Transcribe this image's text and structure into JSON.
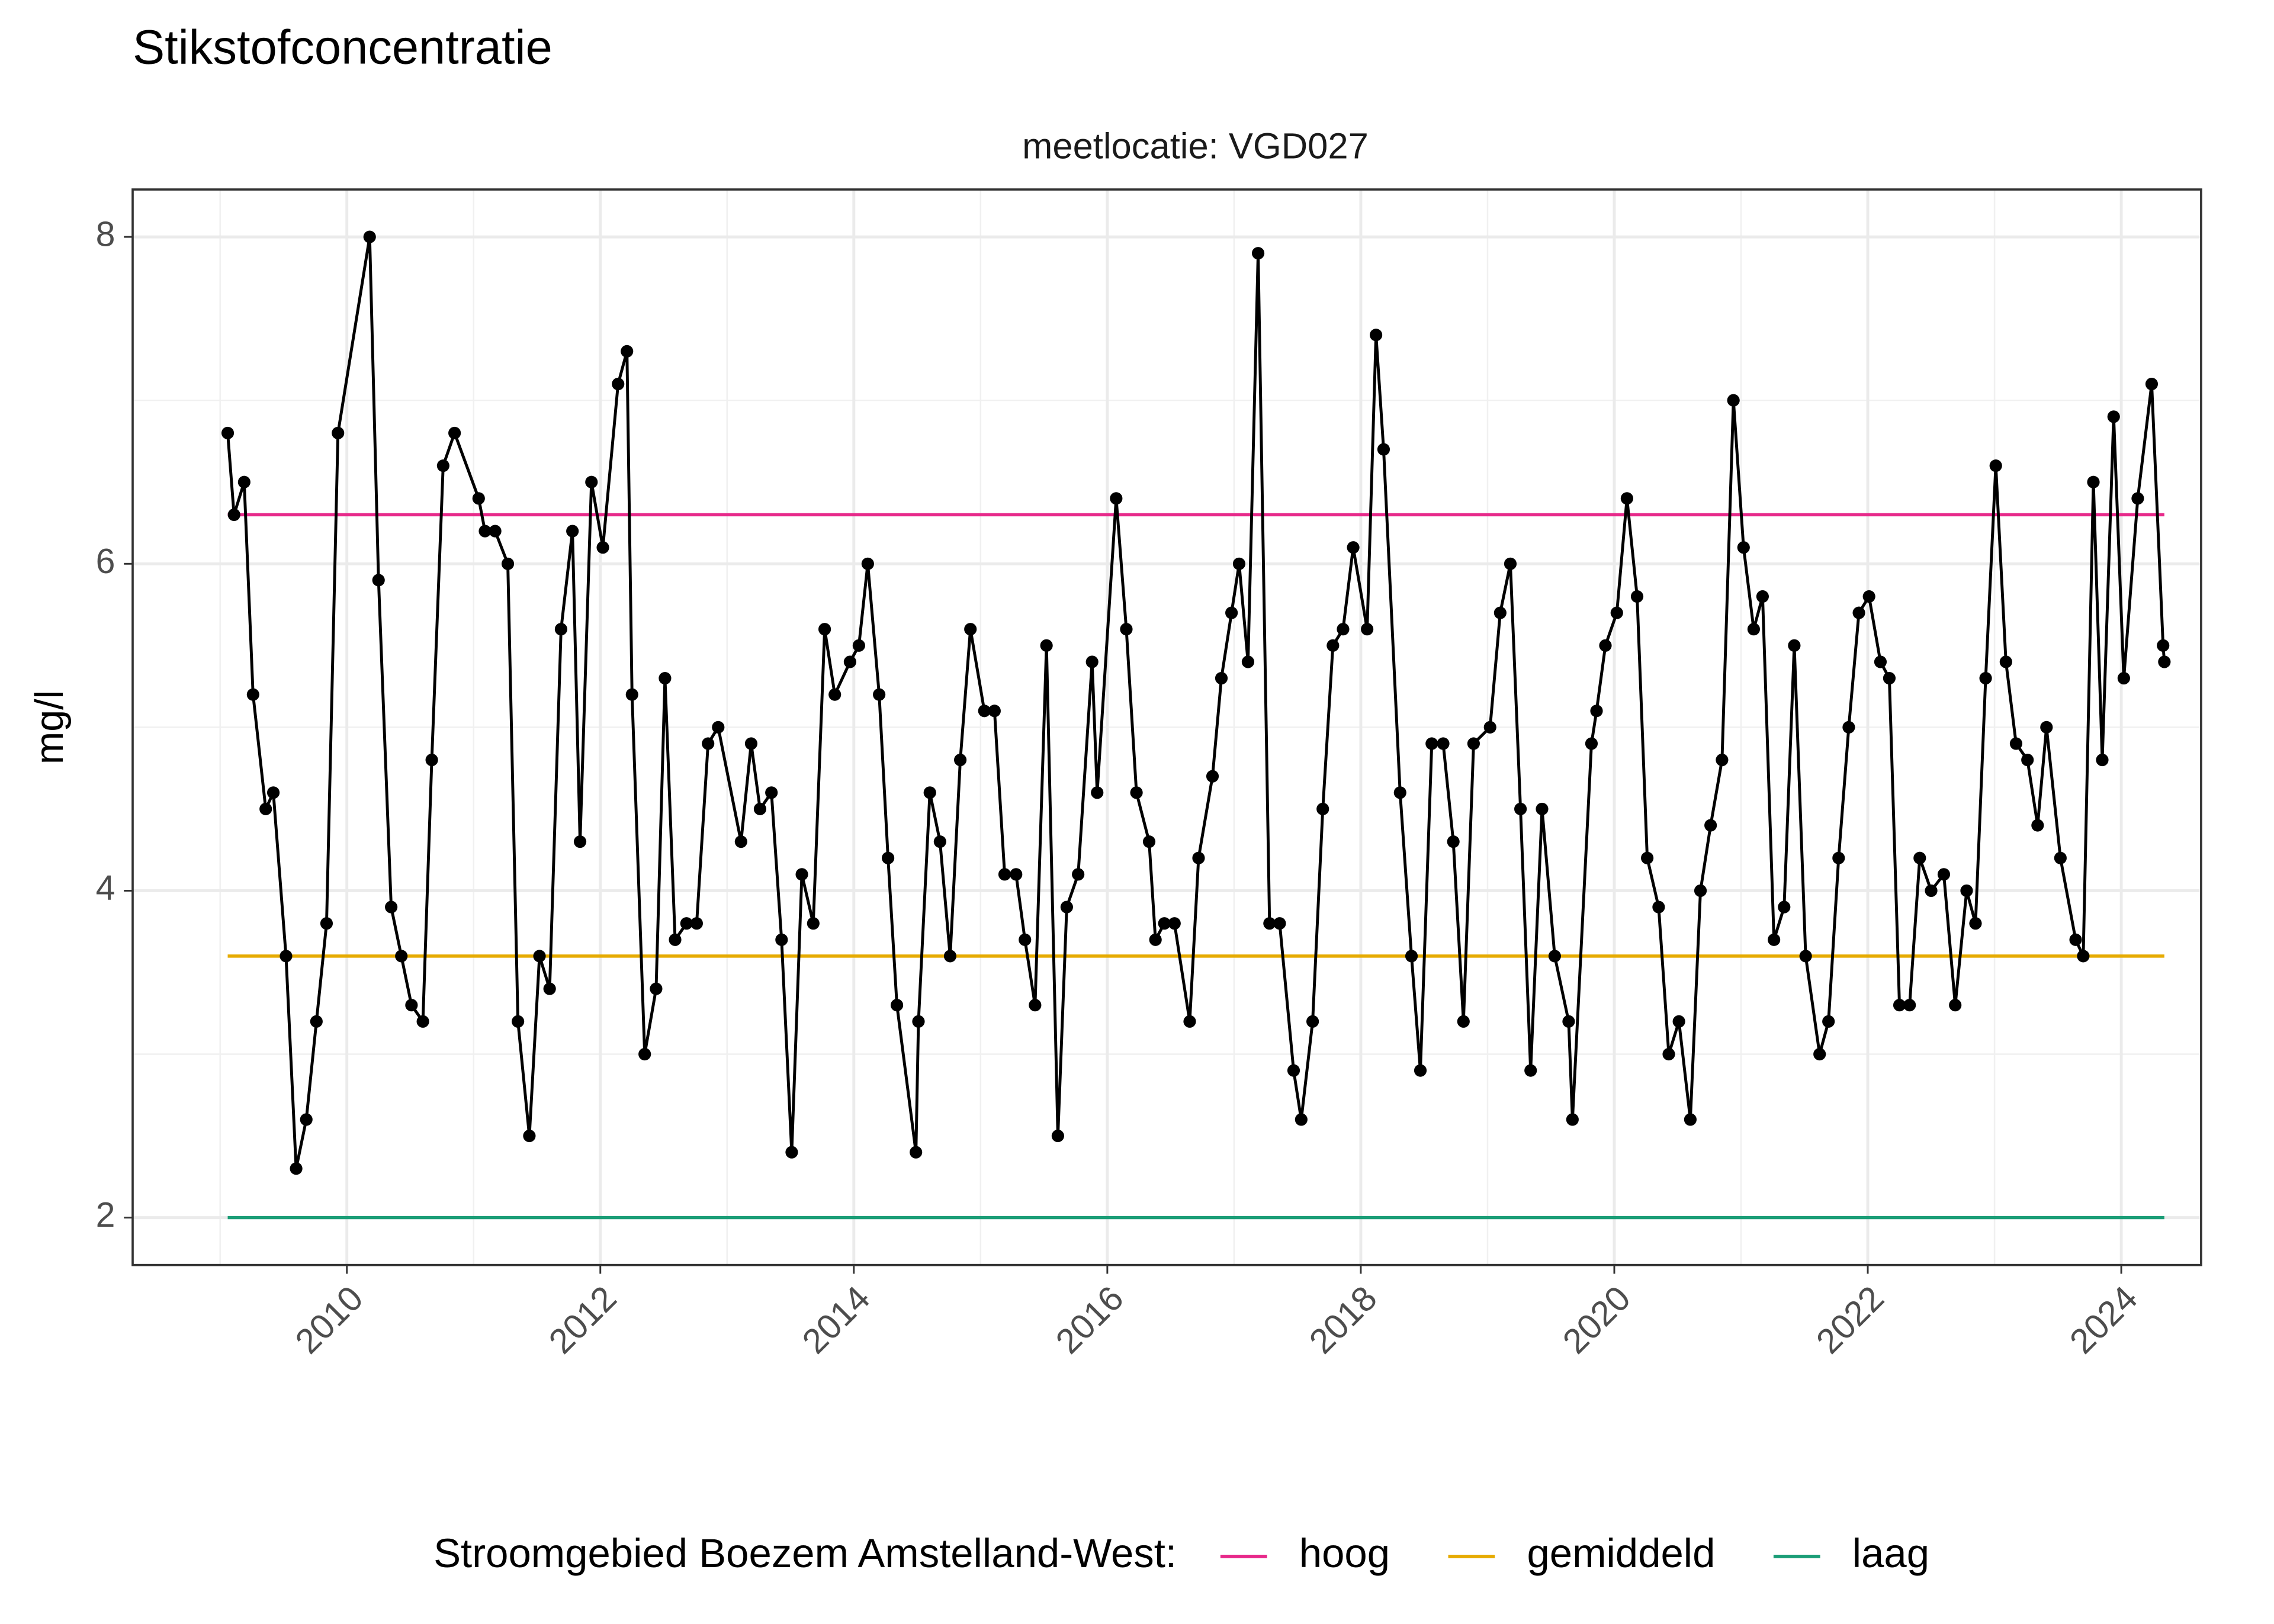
{
  "chart_data": {
    "type": "line",
    "title": "Stikstofconcentratie",
    "subtitle": "meetlocatie: VGD027",
    "y_label": "mg/l",
    "legend_title": "Stroomgebied Boezem Amstelland-West:",
    "legend_position": "bottom",
    "grid": true,
    "xlim": [
      2008.31,
      2024.63
    ],
    "xticks": [
      2010,
      2012,
      2014,
      2016,
      2018,
      2020,
      2022,
      2024
    ],
    "ylim": [
      1.71,
      8.29
    ],
    "yticks": [
      2,
      4,
      6,
      8
    ],
    "series": [
      {
        "color": "#000000",
        "markers": true,
        "x": [
          2009.06,
          2009.11,
          2009.19,
          2009.26,
          2009.36,
          2009.42,
          2009.52,
          2009.6,
          2009.68,
          2009.76,
          2009.84,
          2009.93,
          2010.18,
          2010.25,
          2010.35,
          2010.43,
          2010.51,
          2010.6,
          2010.67,
          2010.76,
          2010.85,
          2011.04,
          2011.09,
          2011.17,
          2011.27,
          2011.35,
          2011.44,
          2011.52,
          2011.6,
          2011.69,
          2011.78,
          2011.84,
          2011.93,
          2012.02,
          2012.14,
          2012.21,
          2012.25,
          2012.35,
          2012.44,
          2012.51,
          2012.59,
          2012.68,
          2012.76,
          2012.85,
          2012.93,
          2013.11,
          2013.19,
          2013.26,
          2013.35,
          2013.43,
          2013.51,
          2013.59,
          2013.68,
          2013.77,
          2013.85,
          2013.97,
          2014.04,
          2014.11,
          2014.2,
          2014.27,
          2014.34,
          2014.49,
          2014.51,
          2014.6,
          2014.68,
          2014.76,
          2014.84,
          2014.92,
          2015.03,
          2015.11,
          2015.19,
          2015.28,
          2015.35,
          2015.43,
          2015.52,
          2015.61,
          2015.68,
          2015.77,
          2015.88,
          2015.92,
          2016.07,
          2016.15,
          2016.23,
          2016.33,
          2016.38,
          2016.45,
          2016.53,
          2016.65,
          2016.72,
          2016.83,
          2016.9,
          2016.98,
          2017.04,
          2017.11,
          2017.19,
          2017.28,
          2017.36,
          2017.47,
          2017.53,
          2017.62,
          2017.7,
          2017.78,
          2017.86,
          2017.94,
          2018.05,
          2018.12,
          2018.18,
          2018.31,
          2018.4,
          2018.47,
          2018.56,
          2018.65,
          2018.73,
          2018.81,
          2018.89,
          2019.02,
          2019.1,
          2019.18,
          2019.26,
          2019.34,
          2019.43,
          2019.53,
          2019.64,
          2019.67,
          2019.82,
          2019.86,
          2019.93,
          2020.02,
          2020.1,
          2020.18,
          2020.26,
          2020.35,
          2020.43,
          2020.51,
          2020.6,
          2020.68,
          2020.76,
          2020.85,
          2020.94,
          2021.02,
          2021.1,
          2021.17,
          2021.26,
          2021.34,
          2021.42,
          2021.51,
          2021.62,
          2021.69,
          2021.77,
          2021.85,
          2021.93,
          2022.01,
          2022.1,
          2022.17,
          2022.25,
          2022.33,
          2022.41,
          2022.5,
          2022.6,
          2022.69,
          2022.78,
          2022.85,
          2022.93,
          2023.01,
          2023.09,
          2023.17,
          2023.26,
          2023.34,
          2023.41,
          2023.52,
          2023.64,
          2023.7,
          2023.78,
          2023.85,
          2023.94,
          2024.02,
          2024.13,
          2024.24,
          2024.33,
          2024.34
        ],
        "values": [
          6.8,
          6.3,
          6.5,
          5.2,
          4.5,
          4.6,
          3.6,
          2.3,
          2.6,
          3.2,
          3.8,
          6.8,
          8.0,
          5.9,
          3.9,
          3.6,
          3.3,
          3.2,
          4.8,
          6.6,
          6.8,
          6.4,
          6.2,
          6.2,
          6.0,
          3.2,
          2.5,
          3.6,
          3.4,
          5.6,
          6.2,
          4.3,
          6.5,
          6.1,
          7.1,
          7.3,
          5.2,
          3.0,
          3.4,
          5.3,
          3.7,
          3.8,
          3.8,
          4.9,
          5.0,
          4.3,
          4.9,
          4.5,
          4.6,
          3.7,
          2.4,
          4.1,
          3.8,
          5.6,
          5.2,
          5.4,
          5.5,
          6.0,
          5.2,
          4.2,
          3.3,
          2.4,
          3.2,
          4.6,
          4.3,
          3.6,
          4.8,
          5.6,
          5.1,
          5.1,
          4.1,
          4.1,
          3.7,
          3.3,
          5.5,
          2.5,
          3.9,
          4.1,
          5.4,
          4.6,
          6.4,
          5.6,
          4.6,
          4.3,
          3.7,
          3.8,
          3.8,
          3.2,
          4.2,
          4.7,
          5.3,
          5.7,
          6.0,
          5.4,
          7.9,
          3.8,
          3.8,
          2.9,
          2.6,
          3.2,
          4.5,
          5.5,
          5.6,
          6.1,
          5.6,
          7.4,
          6.7,
          4.6,
          3.6,
          2.9,
          4.9,
          4.9,
          4.3,
          3.2,
          4.9,
          5.0,
          5.7,
          6.0,
          4.5,
          2.9,
          4.5,
          3.6,
          3.2,
          2.6,
          4.9,
          5.1,
          5.5,
          5.7,
          6.4,
          5.8,
          4.2,
          3.9,
          3.0,
          3.2,
          2.6,
          4.0,
          4.4,
          4.8,
          7.0,
          6.1,
          5.6,
          5.8,
          3.7,
          3.9,
          5.5,
          3.6,
          3.0,
          3.2,
          4.2,
          5.0,
          5.7,
          5.8,
          5.4,
          5.3,
          3.3,
          3.3,
          4.2,
          4.0,
          4.1,
          3.3,
          4.0,
          3.8,
          5.3,
          6.6,
          5.4,
          4.9,
          4.8,
          4.4,
          5.0,
          4.2,
          3.7,
          3.6,
          6.5,
          4.8,
          6.9,
          5.3,
          6.4,
          7.1,
          5.5,
          5.4
        ]
      },
      {
        "name": "hoog",
        "color": "#e7298a",
        "x": [
          2009.06,
          2024.34
        ],
        "values": [
          6.3,
          6.3
        ]
      },
      {
        "name": "gemiddeld",
        "color": "#e6ab02",
        "x": [
          2009.06,
          2024.34
        ],
        "values": [
          3.6,
          3.6
        ]
      },
      {
        "name": "laag",
        "color": "#1b9e77",
        "x": [
          2009.06,
          2024.34
        ],
        "values": [
          2.0,
          2.0
        ]
      }
    ]
  }
}
